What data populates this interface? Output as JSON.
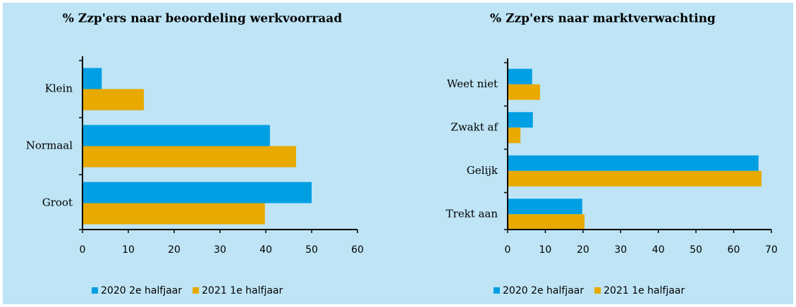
{
  "chart_data": [
    {
      "type": "bar",
      "orientation": "horizontal",
      "title": "% Zzp'ers naar beoordeling werkvoorraad",
      "categories": [
        "Klein",
        "Normaal",
        "Groot"
      ],
      "series": [
        {
          "name": "2020 2e halfjaar",
          "color": "#009fe3",
          "values": [
            4.2,
            40.9,
            50
          ]
        },
        {
          "name": "2021 1e halfjaar",
          "color": "#e8a900",
          "values": [
            13.4,
            46.6,
            39.8
          ]
        }
      ],
      "xlim": [
        0,
        60
      ],
      "xticks": [
        0,
        10,
        20,
        30,
        40,
        50,
        60
      ],
      "grid": false,
      "legend": "bottom"
    },
    {
      "type": "bar",
      "orientation": "horizontal",
      "title": "% Zzp'ers naar marktverwachting",
      "categories": [
        "Weet niet",
        "Zwakt af",
        "Gelijk",
        "Trekt aan"
      ],
      "series": [
        {
          "name": "2020 2e halfjaar",
          "color": "#009fe3",
          "values": [
            6.5,
            6.7,
            66.6,
            19.8
          ]
        },
        {
          "name": "2021 1e halfjaar",
          "color": "#e8a900",
          "values": [
            8.6,
            3.4,
            67.4,
            20.4
          ]
        }
      ],
      "xlim": [
        0,
        70
      ],
      "xticks": [
        0,
        10,
        20,
        30,
        40,
        50,
        60,
        70
      ],
      "grid": false,
      "legend": "bottom"
    }
  ]
}
